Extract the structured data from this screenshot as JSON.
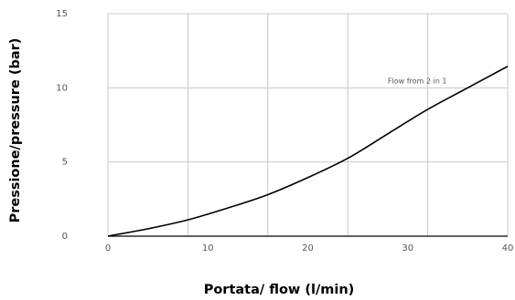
{
  "chart_data": {
    "type": "line",
    "xlabel": "Portata/ flow (l/min)",
    "ylabel": "Pressione/pressure  (bar)",
    "xlim": [
      0,
      40
    ],
    "ylim": [
      0,
      15
    ],
    "x_ticks": [
      "0",
      "10",
      "20",
      "30",
      "40"
    ],
    "y_ticks": [
      "0",
      "5",
      "10",
      "15"
    ],
    "grid": true,
    "annotation": {
      "text": "Flow from 2 in 1",
      "x": 28,
      "y": 10.3
    },
    "series": [
      {
        "x": [
          0,
          4,
          8,
          12,
          16,
          20,
          24,
          28,
          32,
          36,
          40
        ],
        "y": [
          0,
          0.5,
          1.1,
          1.9,
          2.8,
          3.95,
          5.25,
          6.9,
          8.55,
          10.0,
          11.45
        ]
      }
    ]
  },
  "colors": {
    "line": "#000000",
    "grid": "#c8c8c8",
    "axis": "#000000",
    "tick_text": "#555555"
  }
}
